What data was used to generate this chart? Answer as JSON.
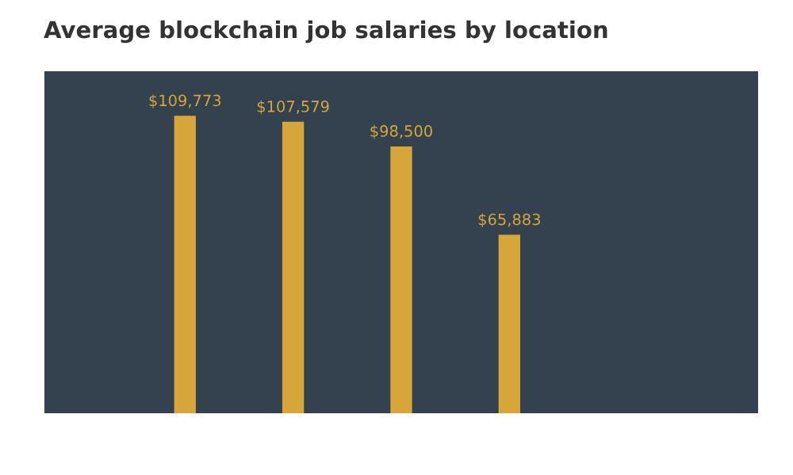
{
  "chart_data": {
    "type": "bar",
    "title": "Average blockchain job salaries by location",
    "categories": [
      null,
      null,
      null,
      null
    ],
    "values": [
      109773,
      107579,
      98500,
      65883
    ],
    "value_labels": [
      "$109,773",
      "$107,579",
      "$98,500",
      "$65,883"
    ],
    "color": "#d6a63a",
    "grid": false
  }
}
